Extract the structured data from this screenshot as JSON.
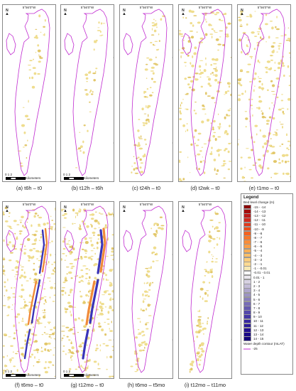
{
  "panels": [
    {
      "id": "a",
      "caption": "(a) t6h – t0",
      "lon": "5°56'0\"W",
      "lat_top": "52°46'0\"N",
      "lat_bottom": "52°45'0\"N",
      "show_lat": false,
      "scale_visible": true,
      "change_level": "none"
    },
    {
      "id": "b",
      "caption": "(b) t12h – t6h",
      "lon": "5°56'0\"W",
      "lat_top": "52°46'0\"N",
      "lat_bottom": "52°45'0\"N",
      "show_lat": true,
      "scale_visible": true,
      "change_level": "none"
    },
    {
      "id": "c",
      "caption": "(c) t24h – t0",
      "lon": "5°56'0\"W",
      "lat_top": "52°46'0\"N",
      "lat_bottom": "52°45'0\"N",
      "show_lat": true,
      "scale_visible": false,
      "change_level": "light"
    },
    {
      "id": "d",
      "caption": "(d) t2wk – t0",
      "lon": "5°56'0\"W",
      "lat_top": "52°46'0\"N",
      "lat_bottom": "52°45'0\"N",
      "show_lat": true,
      "scale_visible": false,
      "change_level": "moderate"
    },
    {
      "id": "e",
      "caption": "(e) t1mo – t0",
      "lon": "5°56'0\"W",
      "lat_top": "52°46'0\"N",
      "lat_bottom": "52°45'0\"N",
      "show_lat": true,
      "scale_visible": false,
      "change_level": "moderate"
    },
    {
      "id": "f",
      "caption": "(f) t6mo – t0",
      "lon": "5°56'0\"W",
      "lat_top": "52°46'0\"N",
      "lat_bottom": "52°45'0\"N",
      "show_lat": true,
      "scale_visible": true,
      "change_level": "strong"
    },
    {
      "id": "g",
      "caption": "(g) t12mo – t0",
      "lon": "5°56'0\"W",
      "lat_top": "52°46'0\"N",
      "lat_bottom": "52°45'0\"N",
      "show_lat": true,
      "scale_visible": true,
      "change_level": "strong"
    },
    {
      "id": "h",
      "caption": "(h) t6mo – t5mo",
      "lon": "5°56'0\"W",
      "lat_top": "52°46'0\"N",
      "lat_bottom": "52°45'0\"N",
      "show_lat": true,
      "scale_visible": false,
      "change_level": "light"
    },
    {
      "id": "i",
      "caption": "(i) t12mo – t11mo",
      "lon": "5°56'0\"W",
      "lat_top": "52°46'0\"N",
      "lat_bottom": "52°45'0\"N",
      "show_lat": true,
      "scale_visible": false,
      "change_level": "light"
    }
  ],
  "scale": {
    "ticks": "0  1  2",
    "unit": "Kilometers"
  },
  "north_label": "N",
  "legend": {
    "title": "Legend",
    "subtitle": "Bed level change (m)",
    "classes": [
      {
        "label": "-15 - -14",
        "color": "#8b0000"
      },
      {
        "label": "-14 - -13",
        "color": "#a30d0d"
      },
      {
        "label": "-13 - -12",
        "color": "#bd1a1a"
      },
      {
        "label": "-12 - -11",
        "color": "#d12b1f"
      },
      {
        "label": "-11 - -10",
        "color": "#e03a1c"
      },
      {
        "label": "-10 - -9",
        "color": "#ec4d1a"
      },
      {
        "label": "-9 - -8",
        "color": "#f46220"
      },
      {
        "label": "-8 - -7",
        "color": "#f7782b"
      },
      {
        "label": "-7 - -6",
        "color": "#f98d3a"
      },
      {
        "label": "-6 - -5",
        "color": "#fa9f48"
      },
      {
        "label": "-5 - -4",
        "color": "#fbb057"
      },
      {
        "label": "-4 - -3",
        "color": "#fcbf69"
      },
      {
        "label": "-3 - -2",
        "color": "#fccd7d"
      },
      {
        "label": "-2 - -1",
        "color": "#fdda93"
      },
      {
        "label": "-1 - -0.01",
        "color": "#f7e9b5"
      },
      {
        "label": "-0.01 - 0.01",
        "color": "#ffffff"
      },
      {
        "label": "0.01 - 1",
        "color": "#ebe8ee"
      },
      {
        "label": "1 - 2",
        "color": "#d7d2e2"
      },
      {
        "label": "2 - 3",
        "color": "#c3bcd7"
      },
      {
        "label": "3 - 4",
        "color": "#afa7cd"
      },
      {
        "label": "4 - 5",
        "color": "#9c93c4"
      },
      {
        "label": "5 - 6",
        "color": "#8a80bd"
      },
      {
        "label": "6 - 7",
        "color": "#776db6"
      },
      {
        "label": "7 - 8",
        "color": "#655ab0"
      },
      {
        "label": "8 - 9",
        "color": "#5348ab"
      },
      {
        "label": "9 - 10",
        "color": "#4337a6"
      },
      {
        "label": "10 - 11",
        "color": "#3527a0"
      },
      {
        "label": "11 - 12",
        "color": "#2a1a99"
      },
      {
        "label": "12 - 13",
        "color": "#210f91"
      },
      {
        "label": "13 - 14",
        "color": "#190887"
      },
      {
        "label": "14 - 15",
        "color": "#12037a"
      }
    ],
    "contour_title": "Water depth contour (mLAT)",
    "contour_label": "-25",
    "contour_color": "#c02ad0"
  },
  "colors": {
    "sand": "#efdd8e",
    "sand_dark": "#e2c76a",
    "erosion": "#f08a3a",
    "accretion": "#3a34b8",
    "contour": "#c02ad0"
  }
}
